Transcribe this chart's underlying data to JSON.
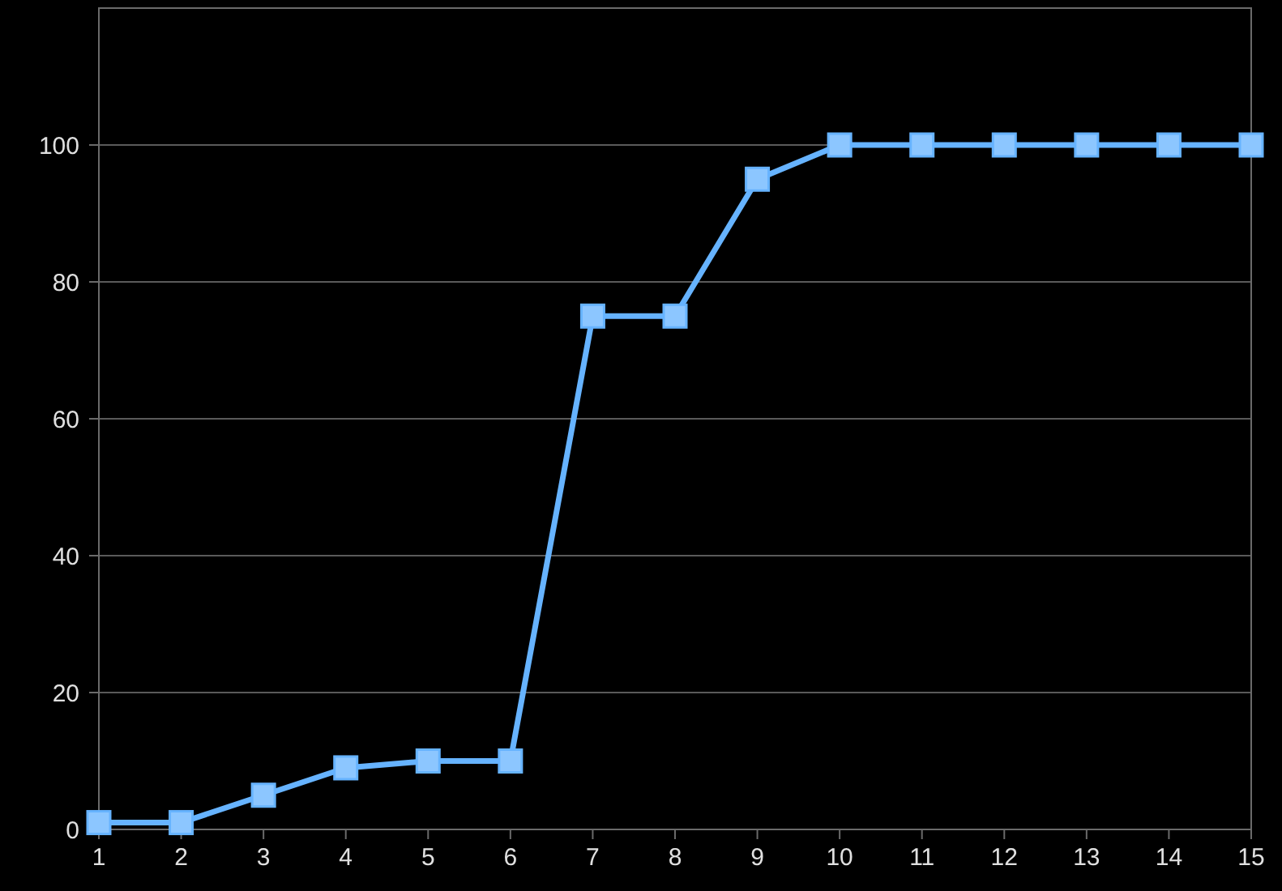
{
  "chart_data": {
    "type": "line",
    "x": [
      1,
      2,
      3,
      4,
      5,
      6,
      7,
      8,
      9,
      10,
      11,
      12,
      13,
      14,
      15
    ],
    "series": [
      {
        "color": "#66b3ff",
        "values": [
          1,
          1,
          5,
          9,
          10,
          10,
          75,
          75,
          95,
          100,
          100,
          100,
          100,
          100,
          100
        ]
      }
    ],
    "xlim": [
      1,
      15
    ],
    "xticks": [
      1,
      2,
      3,
      4,
      5,
      6,
      7,
      8,
      9,
      10,
      11,
      12,
      13,
      14,
      15
    ],
    "ylim": [
      0,
      120
    ],
    "yticks": [
      0,
      20,
      40,
      60,
      80,
      100
    ],
    "grid": "y",
    "marker": "square",
    "line_style": "solid"
  }
}
